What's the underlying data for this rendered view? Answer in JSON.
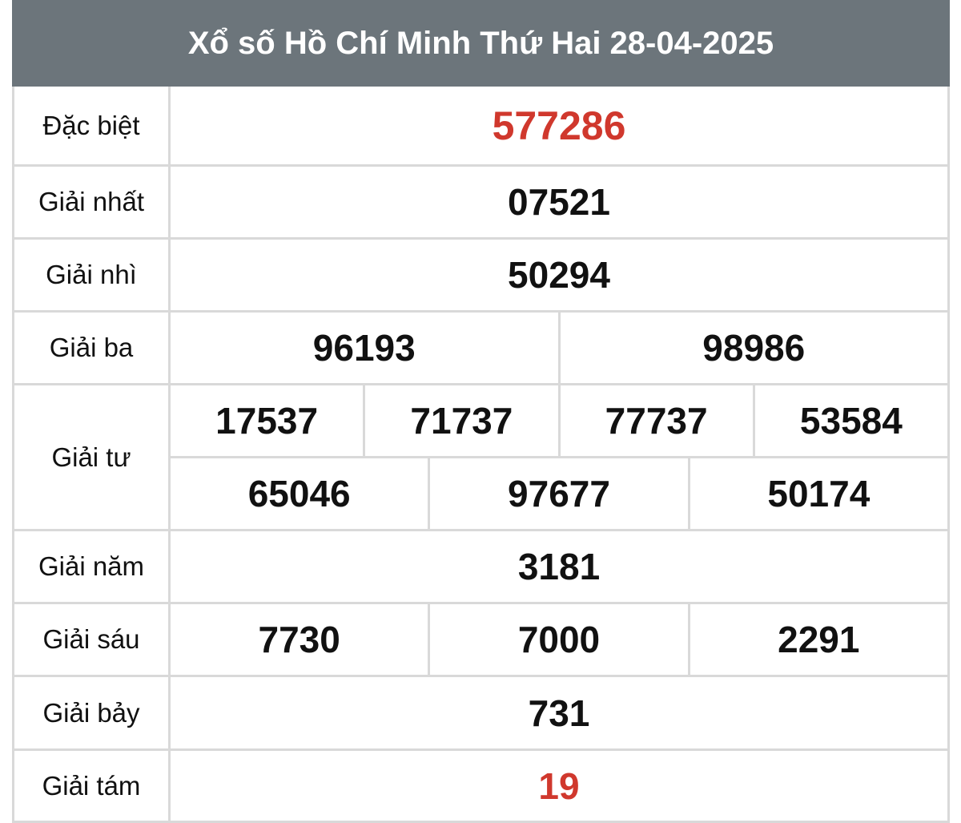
{
  "title": "Xổ số Hồ Chí Minh Thứ Hai 28-04-2025",
  "colors": {
    "header_bg": "#6c757b",
    "highlight": "#d0382d",
    "border": "#d9d9d9"
  },
  "prizes": [
    {
      "label": "Đặc biệt",
      "rows": [
        [
          "577286"
        ]
      ],
      "highlight": true
    },
    {
      "label": "Giải nhất",
      "rows": [
        [
          "07521"
        ]
      ]
    },
    {
      "label": "Giải nhì",
      "rows": [
        [
          "50294"
        ]
      ]
    },
    {
      "label": "Giải ba",
      "rows": [
        [
          "96193",
          "98986"
        ]
      ]
    },
    {
      "label": "Giải tư",
      "rows": [
        [
          "17537",
          "71737",
          "77737",
          "53584"
        ],
        [
          "65046",
          "97677",
          "50174"
        ]
      ]
    },
    {
      "label": "Giải năm",
      "rows": [
        [
          "3181"
        ]
      ]
    },
    {
      "label": "Giải sáu",
      "rows": [
        [
          "7730",
          "7000",
          "2291"
        ]
      ]
    },
    {
      "label": "Giải bảy",
      "rows": [
        [
          "731"
        ]
      ]
    },
    {
      "label": "Giải tám",
      "rows": [
        [
          "19"
        ]
      ],
      "highlight": true
    }
  ]
}
